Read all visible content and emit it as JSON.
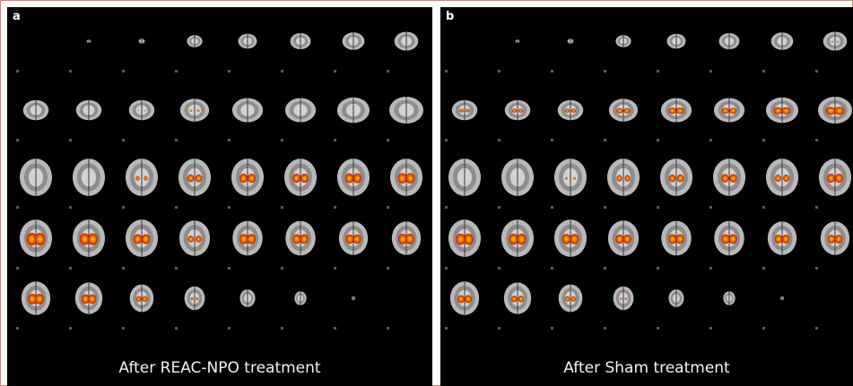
{
  "panels": [
    {
      "id": "a",
      "label": "a",
      "caption": "After REAC-NPO treatment",
      "activation": [
        [
          0,
          0,
          0,
          0,
          0,
          0,
          0,
          0
        ],
        [
          0,
          0,
          0.15,
          0.25,
          0,
          0,
          0,
          0
        ],
        [
          0,
          0,
          0.35,
          0.6,
          0.7,
          0.7,
          0.75,
          0.8
        ],
        [
          0.95,
          0.9,
          0.75,
          0.55,
          0.85,
          0.8,
          0.8,
          0.9
        ],
        [
          0.9,
          0.85,
          0.6,
          0.35,
          0,
          0,
          0,
          0
        ]
      ]
    },
    {
      "id": "b",
      "label": "b",
      "caption": "After Sham treatment",
      "activation": [
        [
          0,
          0,
          0,
          0,
          0,
          0,
          0,
          0.25
        ],
        [
          0.5,
          0.55,
          0.55,
          0.65,
          0.75,
          0.7,
          0.8,
          0.85
        ],
        [
          0,
          0,
          0.2,
          0.5,
          0.6,
          0.65,
          0.55,
          0.7
        ],
        [
          0.85,
          0.85,
          0.8,
          0.75,
          0.8,
          0.8,
          0.75,
          0.75
        ],
        [
          0.7,
          0.6,
          0.55,
          0.3,
          0,
          0,
          0,
          0
        ]
      ]
    }
  ],
  "colors": {
    "background": "#000000",
    "brain": "#b9b9b9",
    "activation_low": "#cc1a00",
    "activation_high": "#ffcc00",
    "frame": "#c98a86"
  }
}
